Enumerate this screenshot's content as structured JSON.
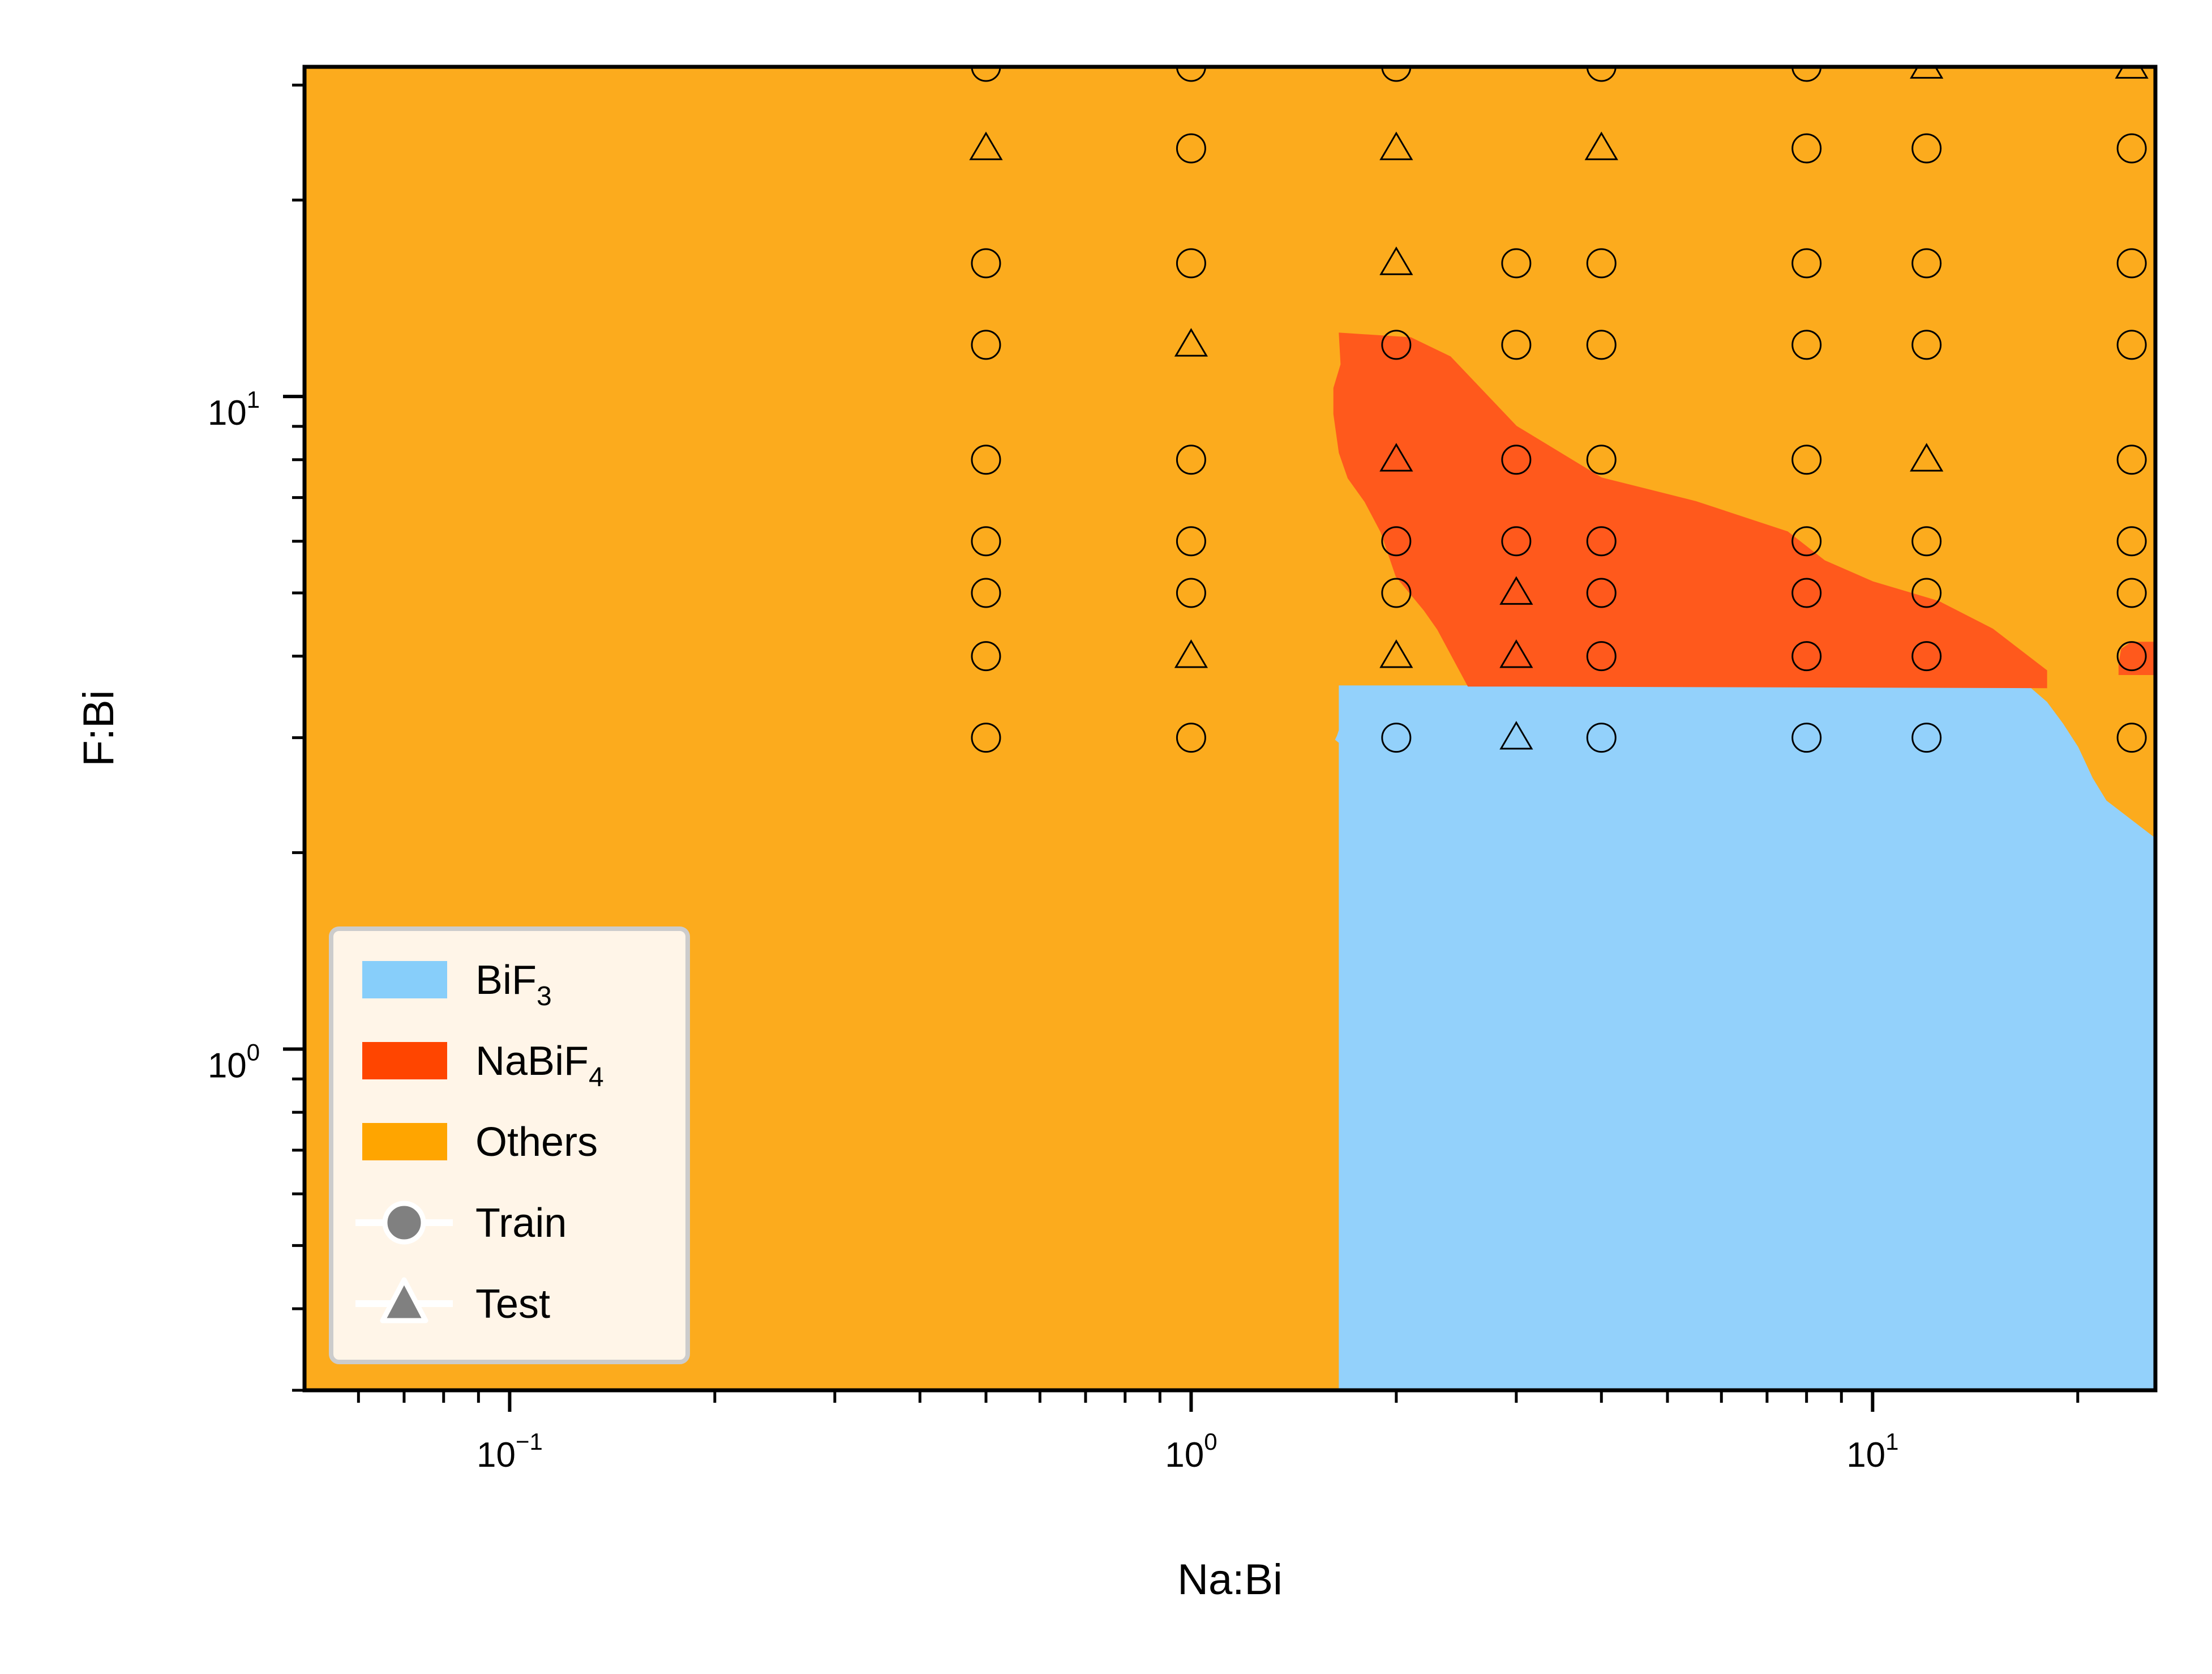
{
  "chart_data": {
    "type": "scatter",
    "xlabel": "Na:Bi",
    "ylabel": "F:Bi",
    "x_scale": "log",
    "y_scale": "log",
    "xlim": [
      0.05,
      26
    ],
    "ylim": [
      0.3,
      32
    ],
    "x_ticks": [
      {
        "value": 0.1,
        "base": "10",
        "exp": "−1"
      },
      {
        "value": 1,
        "base": "10",
        "exp": "0"
      },
      {
        "value": 10,
        "base": "10",
        "exp": "1"
      }
    ],
    "y_ticks": [
      {
        "value": 1,
        "base": "10",
        "exp": "0"
      },
      {
        "value": 10,
        "base": "10",
        "exp": "1"
      }
    ],
    "regions": [
      {
        "name": "BiF",
        "sub": "3",
        "color": "#93D1FB",
        "polygon": [
          [
            1.65,
            0.3
          ],
          [
            1.65,
            2.95
          ],
          [
            1.63,
            2.98
          ],
          [
            1.64,
            3.02
          ],
          [
            1.65,
            3.08
          ],
          [
            1.65,
            3.6
          ],
          [
            2.55,
            3.6
          ],
          [
            3.0,
            3.6
          ],
          [
            17.0,
            3.58
          ],
          [
            18.0,
            3.4
          ],
          [
            19.0,
            3.15
          ],
          [
            20.0,
            2.9
          ],
          [
            21.0,
            2.6
          ],
          [
            22.0,
            2.4
          ],
          [
            26,
            2.1
          ],
          [
            26,
            0.3
          ]
        ]
      },
      {
        "name": "NaBiF",
        "sub": "4",
        "color": "#FF591C",
        "polygon": [
          [
            1.65,
            12.5
          ],
          [
            2.1,
            12.3
          ],
          [
            2.4,
            11.5
          ],
          [
            3.0,
            9.0
          ],
          [
            4.0,
            7.5
          ],
          [
            5.5,
            6.9
          ],
          [
            7.5,
            6.2
          ],
          [
            8.5,
            5.6
          ],
          [
            10.0,
            5.2
          ],
          [
            12.5,
            4.85
          ],
          [
            15.0,
            4.4
          ],
          [
            18.0,
            3.8
          ],
          [
            18.0,
            3.58
          ],
          [
            3.0,
            3.6
          ],
          [
            2.55,
            3.6
          ],
          [
            2.3,
            4.4
          ],
          [
            2.2,
            4.7
          ],
          [
            2.0,
            5.3
          ],
          [
            1.9,
            6.2
          ],
          [
            1.8,
            6.9
          ],
          [
            1.7,
            7.5
          ],
          [
            1.65,
            8.2
          ],
          [
            1.62,
            9.4
          ],
          [
            1.62,
            10.3
          ],
          [
            1.66,
            11.2
          ],
          [
            1.65,
            12.5
          ]
        ]
      },
      {
        "name": "NaBiF4-edge",
        "sub": "",
        "color": "#FF591C",
        "polygon": [
          [
            23.0,
            3.75
          ],
          [
            26,
            3.75
          ],
          [
            26,
            4.2
          ],
          [
            24.0,
            4.2
          ],
          [
            23.2,
            4.1
          ],
          [
            23.0,
            3.9
          ]
        ]
      }
    ],
    "legend": {
      "location": "lower-left",
      "entries": [
        {
          "label": "BiF",
          "sub": "3",
          "kind": "patch",
          "color": "#87CEFA"
        },
        {
          "label": "NaBiF",
          "sub": "4",
          "kind": "patch",
          "color": "#FF4500"
        },
        {
          "label": "Others",
          "sub": "",
          "kind": "patch",
          "color": "#FFA500"
        },
        {
          "label": "Train",
          "sub": "",
          "kind": "circle",
          "color": "#808080"
        },
        {
          "label": "Test",
          "sub": "",
          "kind": "triangle",
          "color": "#808080"
        }
      ]
    },
    "series": [
      {
        "name": "Train",
        "marker": "circle",
        "points": [
          [
            0.5,
            3
          ],
          [
            0.5,
            4
          ],
          [
            0.5,
            5
          ],
          [
            0.5,
            6
          ],
          [
            0.5,
            8
          ],
          [
            0.5,
            12
          ],
          [
            0.5,
            16
          ],
          [
            0.5,
            32
          ],
          [
            1,
            3
          ],
          [
            1,
            5
          ],
          [
            1,
            6
          ],
          [
            1,
            8
          ],
          [
            1,
            16
          ],
          [
            1,
            24
          ],
          [
            1,
            32
          ],
          [
            2,
            3
          ],
          [
            2,
            5
          ],
          [
            2,
            6
          ],
          [
            2,
            12
          ],
          [
            2,
            32
          ],
          [
            3,
            8
          ],
          [
            3,
            6
          ],
          [
            3,
            12
          ],
          [
            3,
            16
          ],
          [
            4,
            3
          ],
          [
            4,
            4
          ],
          [
            4,
            5
          ],
          [
            4,
            6
          ],
          [
            4,
            8
          ],
          [
            4,
            12
          ],
          [
            4,
            16
          ],
          [
            4,
            32
          ],
          [
            8,
            3
          ],
          [
            8,
            4
          ],
          [
            8,
            5
          ],
          [
            8,
            6
          ],
          [
            8,
            8
          ],
          [
            8,
            12
          ],
          [
            8,
            16
          ],
          [
            8,
            24
          ],
          [
            8,
            32
          ],
          [
            12,
            3
          ],
          [
            12,
            4
          ],
          [
            12,
            5
          ],
          [
            12,
            6
          ],
          [
            12,
            12
          ],
          [
            12,
            16
          ],
          [
            12,
            24
          ],
          [
            24,
            3
          ],
          [
            24,
            4
          ],
          [
            24,
            5
          ],
          [
            24,
            6
          ],
          [
            24,
            8
          ],
          [
            24,
            12
          ],
          [
            24,
            16
          ],
          [
            24,
            24
          ]
        ]
      },
      {
        "name": "Test",
        "marker": "triangle",
        "points": [
          [
            0.5,
            24
          ],
          [
            1,
            4
          ],
          [
            1,
            12
          ],
          [
            2,
            4
          ],
          [
            2,
            8
          ],
          [
            2,
            16
          ],
          [
            2,
            24
          ],
          [
            3,
            3
          ],
          [
            3,
            4
          ],
          [
            3,
            5
          ],
          [
            4,
            24
          ],
          [
            12,
            8
          ],
          [
            12,
            32
          ],
          [
            24,
            32
          ]
        ]
      }
    ]
  }
}
